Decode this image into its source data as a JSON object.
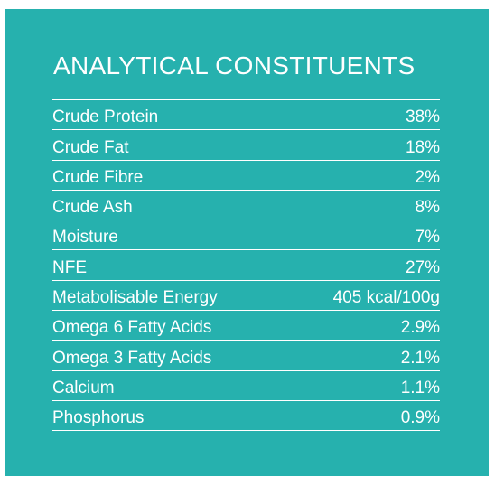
{
  "title": "ANALYTICAL CONSTITUENTS",
  "colors": {
    "panel_background": "#26b1ae",
    "text": "#ffffff",
    "rule": "#ffffff"
  },
  "rows": [
    {
      "label": "Crude Protein",
      "value": "38%"
    },
    {
      "label": "Crude Fat",
      "value": "18%"
    },
    {
      "label": "Crude Fibre",
      "value": "2%"
    },
    {
      "label": "Crude Ash",
      "value": "8%"
    },
    {
      "label": "Moisture",
      "value": "7%"
    },
    {
      "label": "NFE",
      "value": "27%"
    },
    {
      "label": "Metabolisable Energy",
      "value": "405 kcal/100g"
    },
    {
      "label": "Omega 6 Fatty Acids",
      "value": "2.9%"
    },
    {
      "label": "Omega 3 Fatty Acids",
      "value": "2.1%"
    },
    {
      "label": "Calcium",
      "value": "1.1%"
    },
    {
      "label": "Phosphorus",
      "value": "0.9%"
    }
  ]
}
